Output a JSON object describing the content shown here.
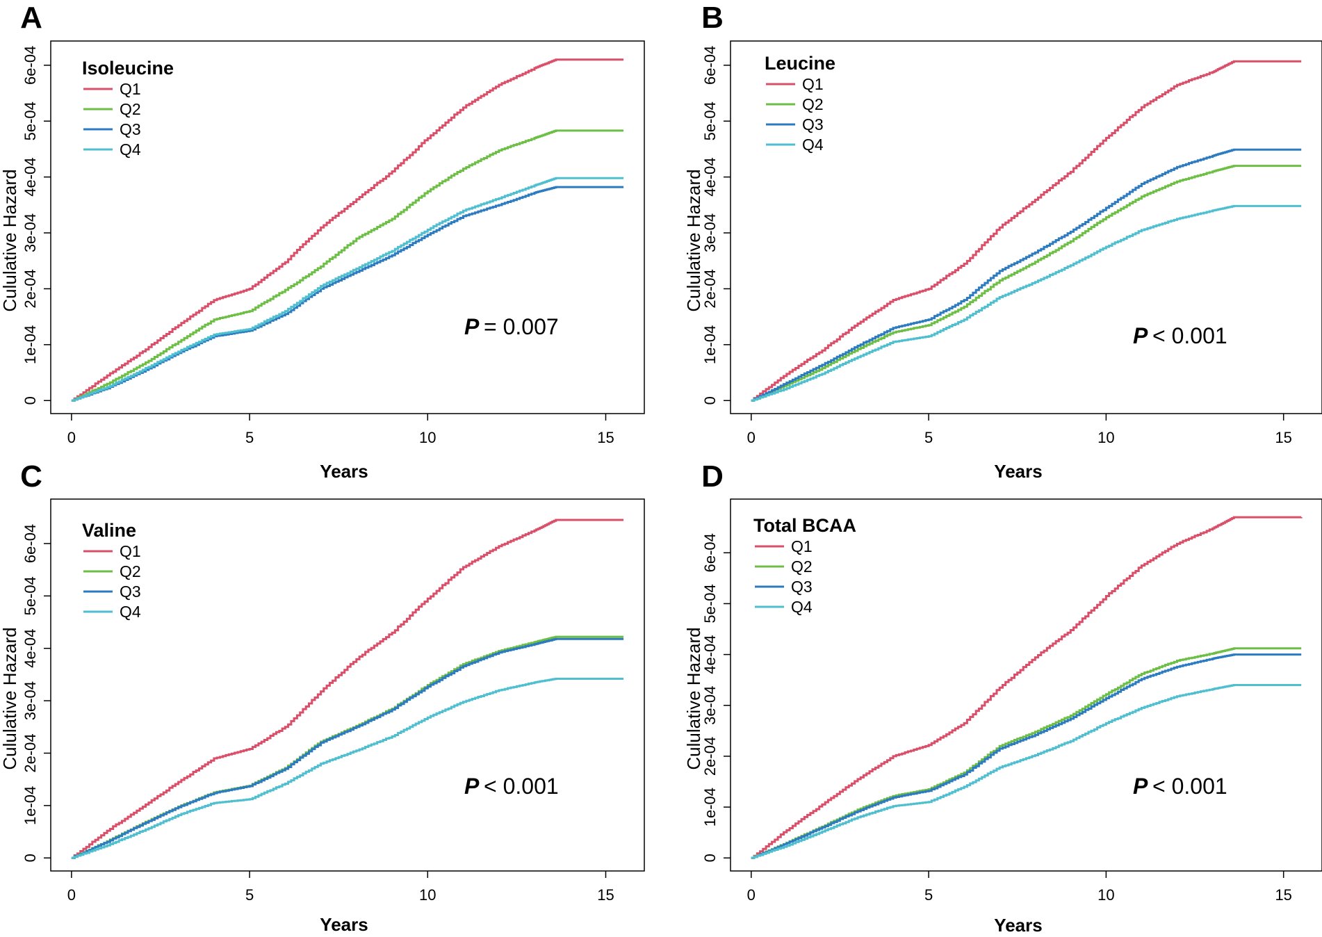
{
  "chart_data": [
    {
      "type": "line",
      "panel_label": "A",
      "legend_title": "Isoleucine",
      "xlabel": "Years",
      "ylabel": "Cululative Hazard",
      "xlim": [
        0,
        15.5
      ],
      "ylim": [
        0,
        0.00062
      ],
      "xticks": [
        0,
        5,
        10,
        15
      ],
      "xtick_labels": [
        "0",
        "5",
        "10",
        "15"
      ],
      "yticks": [
        0,
        0.0001,
        0.0002,
        0.0003,
        0.0004,
        0.0005,
        0.0006
      ],
      "ytick_labels": [
        "0",
        "1e-04",
        "2e-04",
        "3e-04",
        "4e-04",
        "5e-04",
        "6e-04"
      ],
      "p_symbol": "P",
      "p_text": "= 0.007",
      "series": [
        {
          "name": "Q1",
          "color": "#D94E68",
          "x": [
            0,
            1,
            2,
            3,
            4,
            5,
            6,
            7,
            8,
            9,
            10,
            11,
            12,
            13,
            13.6,
            15.5
          ],
          "y": [
            0,
            4.5e-05,
            8.8e-05,
            0.000135,
            0.00018,
            0.0002,
            0.000248,
            0.00031,
            0.00036,
            0.00041,
            0.00047,
            0.000525,
            0.000565,
            0.000595,
            0.00061,
            0.00061
          ]
        },
        {
          "name": "Q2",
          "color": "#6DBE45",
          "x": [
            0,
            1,
            2,
            3,
            4,
            5,
            6,
            7,
            8,
            9,
            10,
            11,
            12,
            13,
            13.6,
            15.5
          ],
          "y": [
            0,
            3e-05,
            6.5e-05,
            0.000105,
            0.000145,
            0.00016,
            0.000198,
            0.00024,
            0.00029,
            0.000325,
            0.000375,
            0.000415,
            0.000448,
            0.00047,
            0.000483,
            0.000483
          ]
        },
        {
          "name": "Q3",
          "color": "#2C7BC0",
          "x": [
            0,
            1,
            2,
            3,
            4,
            5,
            6,
            7,
            8,
            9,
            10,
            11,
            12,
            13,
            13.6,
            15.5
          ],
          "y": [
            0,
            2.2e-05,
            5.2e-05,
            8.5e-05,
            0.000115,
            0.000125,
            0.000155,
            0.0002,
            0.00023,
            0.00026,
            0.000297,
            0.00033,
            0.00035,
            0.000372,
            0.000382,
            0.000382
          ]
        },
        {
          "name": "Q4",
          "color": "#4FBFD0",
          "x": [
            0,
            1,
            2,
            3,
            4,
            5,
            6,
            7,
            8,
            9,
            10,
            11,
            12,
            13,
            13.6,
            15.5
          ],
          "y": [
            0,
            2.4e-05,
            5.5e-05,
            8.8e-05,
            0.000118,
            0.000128,
            0.00016,
            0.000205,
            0.000236,
            0.000268,
            0.000306,
            0.00034,
            0.000362,
            0.000385,
            0.000398,
            0.000398
          ]
        }
      ]
    },
    {
      "type": "line",
      "panel_label": "B",
      "legend_title": "Leucine",
      "xlabel": "Years",
      "ylabel": "Cululative Hazard",
      "xlim": [
        0,
        15.5
      ],
      "ylim": [
        0,
        0.00062
      ],
      "xticks": [
        0,
        5,
        10,
        15
      ],
      "xtick_labels": [
        "0",
        "5",
        "10",
        "15"
      ],
      "yticks": [
        0,
        0.0001,
        0.0002,
        0.0003,
        0.0004,
        0.0005,
        0.0006
      ],
      "ytick_labels": [
        "0",
        "1e-04",
        "2e-04",
        "3e-04",
        "4e-04",
        "5e-04",
        "6e-04"
      ],
      "p_symbol": "P",
      "p_text": "< 0.001",
      "series": [
        {
          "name": "Q1",
          "color": "#D94E68",
          "x": [
            0,
            1,
            2,
            3,
            4,
            5,
            6,
            7,
            8,
            9,
            10,
            11,
            12,
            13,
            13.6,
            15.5
          ],
          "y": [
            0,
            4.8e-05,
            9e-05,
            0.000138,
            0.00018,
            0.0002,
            0.000245,
            0.00031,
            0.00036,
            0.00041,
            0.00047,
            0.000525,
            0.000565,
            0.000588,
            0.000607,
            0.000607
          ]
        },
        {
          "name": "Q2",
          "color": "#6DBE45",
          "x": [
            0,
            1,
            2,
            3,
            4,
            5,
            6,
            7,
            8,
            9,
            10,
            11,
            12,
            13,
            13.6,
            15.5
          ],
          "y": [
            0,
            2.8e-05,
            5.8e-05,
            9.2e-05,
            0.000122,
            0.000135,
            0.000168,
            0.000215,
            0.000248,
            0.000285,
            0.000328,
            0.000365,
            0.000392,
            0.00041,
            0.00042,
            0.00042
          ]
        },
        {
          "name": "Q3",
          "color": "#2C7BC0",
          "x": [
            0,
            1,
            2,
            3,
            4,
            5,
            6,
            7,
            8,
            9,
            10,
            11,
            12,
            13,
            13.6,
            15.5
          ],
          "y": [
            0,
            3.2e-05,
            6.4e-05,
            9.8e-05,
            0.00013,
            0.000145,
            0.00018,
            0.000232,
            0.000265,
            0.000302,
            0.000345,
            0.000388,
            0.000418,
            0.000438,
            0.000449,
            0.000449
          ]
        },
        {
          "name": "Q4",
          "color": "#4FBFD0",
          "x": [
            0,
            1,
            2,
            3,
            4,
            5,
            6,
            7,
            8,
            9,
            10,
            11,
            12,
            13,
            13.6,
            15.5
          ],
          "y": [
            0,
            2.2e-05,
            4.8e-05,
            7.8e-05,
            0.000105,
            0.000115,
            0.000145,
            0.000185,
            0.000212,
            0.000242,
            0.000275,
            0.000305,
            0.000325,
            0.00034,
            0.000348,
            0.000348
          ]
        }
      ]
    },
    {
      "type": "line",
      "panel_label": "C",
      "legend_title": "Valine",
      "xlabel": "Years",
      "ylabel": "Cululative Hazard",
      "xlim": [
        0,
        15.5
      ],
      "ylim": [
        0,
        0.00066
      ],
      "xticks": [
        0,
        5,
        10,
        15
      ],
      "xtick_labels": [
        "0",
        "5",
        "10",
        "15"
      ],
      "yticks": [
        0,
        0.0001,
        0.0002,
        0.0003,
        0.0004,
        0.0005,
        0.0006
      ],
      "ytick_labels": [
        "0",
        "1e-04",
        "2e-04",
        "3e-04",
        "4e-04",
        "5e-04",
        "6e-04"
      ],
      "p_symbol": "P",
      "p_text": "< 0.001",
      "series": [
        {
          "name": "Q1",
          "color": "#D94E68",
          "x": [
            0,
            1,
            2,
            3,
            4,
            5,
            6,
            7,
            8,
            9,
            10,
            11,
            12,
            13,
            13.6,
            15.5
          ],
          "y": [
            0,
            5.2e-05,
            9.8e-05,
            0.000145,
            0.00019,
            0.000208,
            0.00025,
            0.000318,
            0.00038,
            0.00043,
            0.000495,
            0.000555,
            0.000595,
            0.000625,
            0.000645,
            0.000645
          ]
        },
        {
          "name": "Q2",
          "color": "#6DBE45",
          "x": [
            0,
            1,
            2,
            3,
            4,
            5,
            6,
            7,
            8,
            9,
            10,
            11,
            12,
            13,
            13.6,
            15.5
          ],
          "y": [
            0,
            3.2e-05,
            6.6e-05,
            9.8e-05,
            0.000125,
            0.000138,
            0.000172,
            0.000222,
            0.000252,
            0.000285,
            0.00033,
            0.00037,
            0.000395,
            0.000412,
            0.000422,
            0.000422
          ]
        },
        {
          "name": "Q3",
          "color": "#2C7BC0",
          "x": [
            0,
            1,
            2,
            3,
            4,
            5,
            6,
            7,
            8,
            9,
            10,
            11,
            12,
            13,
            13.6,
            15.5
          ],
          "y": [
            0,
            3.1e-05,
            6.5e-05,
            9.7e-05,
            0.000124,
            0.000137,
            0.00017,
            0.00022,
            0.00025,
            0.000283,
            0.000327,
            0.000366,
            0.000392,
            0.000408,
            0.000418,
            0.000418
          ]
        },
        {
          "name": "Q4",
          "color": "#4FBFD0",
          "x": [
            0,
            1,
            2,
            3,
            4,
            5,
            6,
            7,
            8,
            9,
            10,
            11,
            12,
            13,
            13.6,
            15.5
          ],
          "y": [
            0,
            2.4e-05,
            5.2e-05,
            8.2e-05,
            0.000105,
            0.000112,
            0.000142,
            0.00018,
            0.000205,
            0.000232,
            0.000268,
            0.000298,
            0.00032,
            0.000335,
            0.000342,
            0.000342
          ]
        }
      ]
    },
    {
      "type": "line",
      "panel_label": "D",
      "legend_title": "Total BCAA",
      "xlabel": "Years",
      "ylabel": "Cululative Hazard",
      "xlim": [
        0,
        15.5
      ],
      "ylim": [
        0,
        0.00068
      ],
      "xticks": [
        0,
        5,
        10,
        15
      ],
      "xtick_labels": [
        "0",
        "5",
        "10",
        "15"
      ],
      "yticks": [
        0,
        0.0001,
        0.0002,
        0.0003,
        0.0004,
        0.0005,
        0.0006
      ],
      "ytick_labels": [
        "0",
        "1e-04",
        "2e-04",
        "3e-04",
        "4e-04",
        "5e-04",
        "6e-04"
      ],
      "p_symbol": "P",
      "p_text": "< 0.001",
      "series": [
        {
          "name": "Q1",
          "color": "#D94E68",
          "x": [
            0,
            1,
            2,
            3,
            4,
            5,
            6,
            7,
            8,
            9,
            10,
            11,
            12,
            13,
            13.6,
            15.5
          ],
          "y": [
            0,
            5.5e-05,
            0.000105,
            0.000155,
            0.0002,
            0.000222,
            0.000265,
            0.000335,
            0.000395,
            0.000448,
            0.000515,
            0.000575,
            0.000618,
            0.000648,
            0.00067,
            0.00067
          ]
        },
        {
          "name": "Q2",
          "color": "#6DBE45",
          "x": [
            0,
            1,
            2,
            3,
            4,
            5,
            6,
            7,
            8,
            9,
            10,
            11,
            12,
            13,
            13.6,
            15.5
          ],
          "y": [
            0,
            3e-05,
            6.2e-05,
            9.5e-05,
            0.000122,
            0.000135,
            0.000168,
            0.00022,
            0.000248,
            0.00028,
            0.000322,
            0.000362,
            0.000388,
            0.000402,
            0.000412,
            0.000412
          ]
        },
        {
          "name": "Q3",
          "color": "#2C7BC0",
          "x": [
            0,
            1,
            2,
            3,
            4,
            5,
            6,
            7,
            8,
            9,
            10,
            11,
            12,
            13,
            13.6,
            15.5
          ],
          "y": [
            0,
            2.9e-05,
            6e-05,
            9.2e-05,
            0.000119,
            0.000132,
            0.000164,
            0.000215,
            0.000242,
            0.000274,
            0.000314,
            0.000352,
            0.000376,
            0.000392,
            0.0004,
            0.0004
          ]
        },
        {
          "name": "Q4",
          "color": "#4FBFD0",
          "x": [
            0,
            1,
            2,
            3,
            4,
            5,
            6,
            7,
            8,
            9,
            10,
            11,
            12,
            13,
            13.6,
            15.5
          ],
          "y": [
            0,
            2.4e-05,
            5.2e-05,
            8e-05,
            0.000102,
            0.00011,
            0.00014,
            0.000178,
            0.000202,
            0.00023,
            0.000265,
            0.000295,
            0.000318,
            0.000332,
            0.00034,
            0.00034
          ]
        }
      ]
    }
  ]
}
